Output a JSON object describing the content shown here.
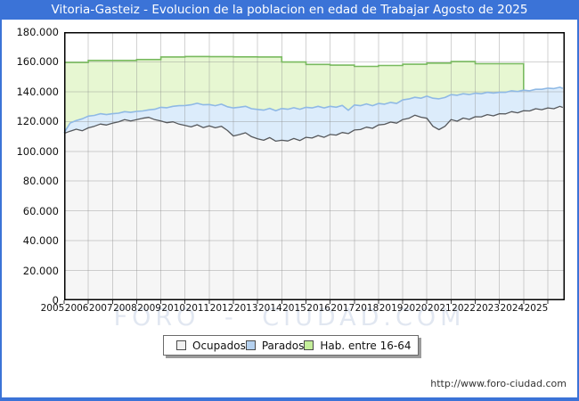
{
  "window_title": "Vitoria-Gasteiz - Evolucion de la poblacion en edad de Trabajar Agosto de 2025",
  "watermark": "FORO - CIUDAD.COM",
  "footer_url": "http://www.foro-ciudad.com",
  "legend": {
    "items": [
      {
        "label": "Ocupados",
        "swatch": "#f1f1f1"
      },
      {
        "label": "Parados",
        "swatch": "#b6d2f0"
      },
      {
        "label": "Hab. entre 16-64",
        "swatch": "#c4ee9a"
      }
    ]
  },
  "colors": {
    "frame_blue": "#3b73d7",
    "grid": "#8a8a8a",
    "hab_fill": "#e7f7d2",
    "hab_line": "#79ba5f",
    "parados_fill": "#dcecfb",
    "parados_line": "#8fb9e5",
    "ocupados_fill": "#f6f6f6",
    "ocupados_line": "#55585c"
  },
  "chart_data": {
    "type": "area",
    "title": "Vitoria-Gasteiz - Evolucion de la poblacion en edad de Trabajar Agosto de 2025",
    "xlabel": "",
    "ylabel": "",
    "grid": true,
    "legend_position": "bottom",
    "x_start": 2005,
    "x_end": 2025.7,
    "x_ticks": [
      "2005",
      "2006",
      "2007",
      "2008",
      "2009",
      "2010",
      "2011",
      "2012",
      "2013",
      "2014",
      "2015",
      "2016",
      "2017",
      "2018",
      "2019",
      "2020",
      "2021",
      "2022",
      "2023",
      "2024",
      "2025"
    ],
    "ylim": [
      0,
      180000
    ],
    "y_tick_step": 20000,
    "y_tick_labels": [
      "180.000",
      "160.000",
      "140.000",
      "120.000",
      "100.000",
      "80.000",
      "60.000",
      "40.000",
      "20.000",
      "0"
    ],
    "series": [
      {
        "name": "Hab. entre 16-64",
        "mode": "annual-step",
        "x": [
          2005,
          2006,
          2007,
          2008,
          2009,
          2010,
          2011,
          2012,
          2013,
          2014,
          2015,
          2016,
          2017,
          2018,
          2019,
          2020,
          2021,
          2022,
          2023
        ],
        "values": [
          159600,
          161000,
          161000,
          161600,
          163300,
          163600,
          163500,
          163400,
          163300,
          159900,
          158300,
          157800,
          157000,
          157600,
          158400,
          159200,
          160200,
          158800,
          158800
        ],
        "end_x": 2024.0,
        "end_drop_to": 141000
      },
      {
        "name": "Parados",
        "mode": "quarterly",
        "note": "area stacked on Ocupados; top line = Ocupados + Parados",
        "x0": 2005,
        "x_step": 0.25,
        "x_data_end": 2025.62,
        "top_values": [
          112500,
          119000,
          120600,
          121800,
          123600,
          124100,
          125200,
          124600,
          125200,
          125600,
          126600,
          126100,
          126800,
          127100,
          127800,
          128200,
          129500,
          129200,
          130200,
          130600,
          130700,
          131200,
          132200,
          131200,
          131400,
          130600,
          131600,
          129900,
          129100,
          129600,
          130200,
          128600,
          128100,
          127600,
          128800,
          127200,
          128700,
          128200,
          129200,
          128200,
          129500,
          129100,
          130200,
          129100,
          130200,
          129600,
          130800,
          127500,
          131100,
          130600,
          131800,
          130600,
          132100,
          131600,
          132800,
          132100,
          134500,
          135100,
          136200,
          135600,
          137000,
          135600,
          135200,
          136100,
          138000,
          137600,
          138600,
          138100,
          139000,
          138600,
          139600,
          139100,
          139600,
          139600,
          140600,
          140100,
          141000,
          140600,
          141600,
          141600,
          142400,
          142100,
          143000,
          142200
        ]
      },
      {
        "name": "Ocupados",
        "mode": "quarterly",
        "x0": 2005,
        "x_step": 0.25,
        "x_data_end": 2025.62,
        "values": [
          112000,
          113500,
          114800,
          113800,
          115700,
          116800,
          118300,
          117600,
          118900,
          119800,
          121200,
          120400,
          121300,
          122200,
          122800,
          121200,
          120300,
          119200,
          119800,
          118200,
          117300,
          116400,
          117800,
          115900,
          117000,
          115800,
          116800,
          114000,
          110300,
          111200,
          112400,
          109800,
          108400,
          107400,
          109200,
          106800,
          107400,
          106900,
          108600,
          107200,
          109400,
          108900,
          110600,
          109400,
          111300,
          110900,
          112600,
          111900,
          114300,
          114600,
          116200,
          115400,
          117700,
          118100,
          119600,
          118900,
          121300,
          122100,
          124200,
          122900,
          122200,
          116800,
          114500,
          116800,
          121300,
          120200,
          122300,
          121400,
          123200,
          123100,
          124600,
          123800,
          125200,
          125100,
          126600,
          125800,
          127200,
          127100,
          128600,
          127900,
          129100,
          128600,
          130200,
          129400
        ]
      }
    ]
  }
}
